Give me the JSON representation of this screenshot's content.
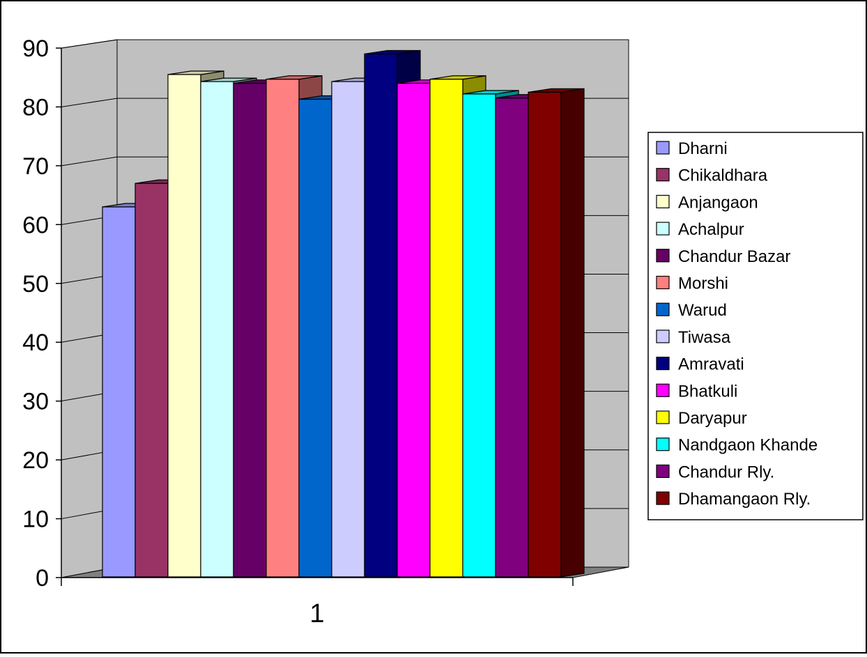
{
  "chart_data": {
    "type": "bar",
    "categories": [
      "1"
    ],
    "series": [
      {
        "name": "Dharni",
        "values": [
          63
        ],
        "color": "#9999FF"
      },
      {
        "name": "Chikaldhara",
        "values": [
          67
        ],
        "color": "#993366"
      },
      {
        "name": "Anjangaon",
        "values": [
          85.5
        ],
        "color": "#FFFFCC"
      },
      {
        "name": "Achalpur",
        "values": [
          84.3
        ],
        "color": "#CCFFFF"
      },
      {
        "name": "Chandur Bazar",
        "values": [
          84
        ],
        "color": "#660066"
      },
      {
        "name": "Morshi",
        "values": [
          84.7
        ],
        "color": "#FF8080"
      },
      {
        "name": "Warud",
        "values": [
          81.3
        ],
        "color": "#0066CC"
      },
      {
        "name": "Tiwasa",
        "values": [
          84.3
        ],
        "color": "#CCCCFF"
      },
      {
        "name": "Amravati",
        "values": [
          89
        ],
        "color": "#000080"
      },
      {
        "name": "Bhatkuli",
        "values": [
          84
        ],
        "color": "#FF00FF"
      },
      {
        "name": "Daryapur",
        "values": [
          84.7
        ],
        "color": "#FFFF00"
      },
      {
        "name": "Nandgaon Khande",
        "values": [
          82.2
        ],
        "color": "#00FFFF"
      },
      {
        "name": "Chandur Rly.",
        "values": [
          81.5
        ],
        "color": "#800080"
      },
      {
        "name": "Dhamangaon Rly.",
        "values": [
          82.5
        ],
        "color": "#800000"
      }
    ],
    "ylim": [
      0,
      90
    ],
    "yticks": [
      "0",
      "10",
      "20",
      "30",
      "40",
      "50",
      "60",
      "70",
      "80",
      "90"
    ],
    "grid": true,
    "legend_position": "right",
    "style": "3d-clustered-column",
    "wall_color": "#C0C0C0",
    "floor_color": "#808080"
  }
}
